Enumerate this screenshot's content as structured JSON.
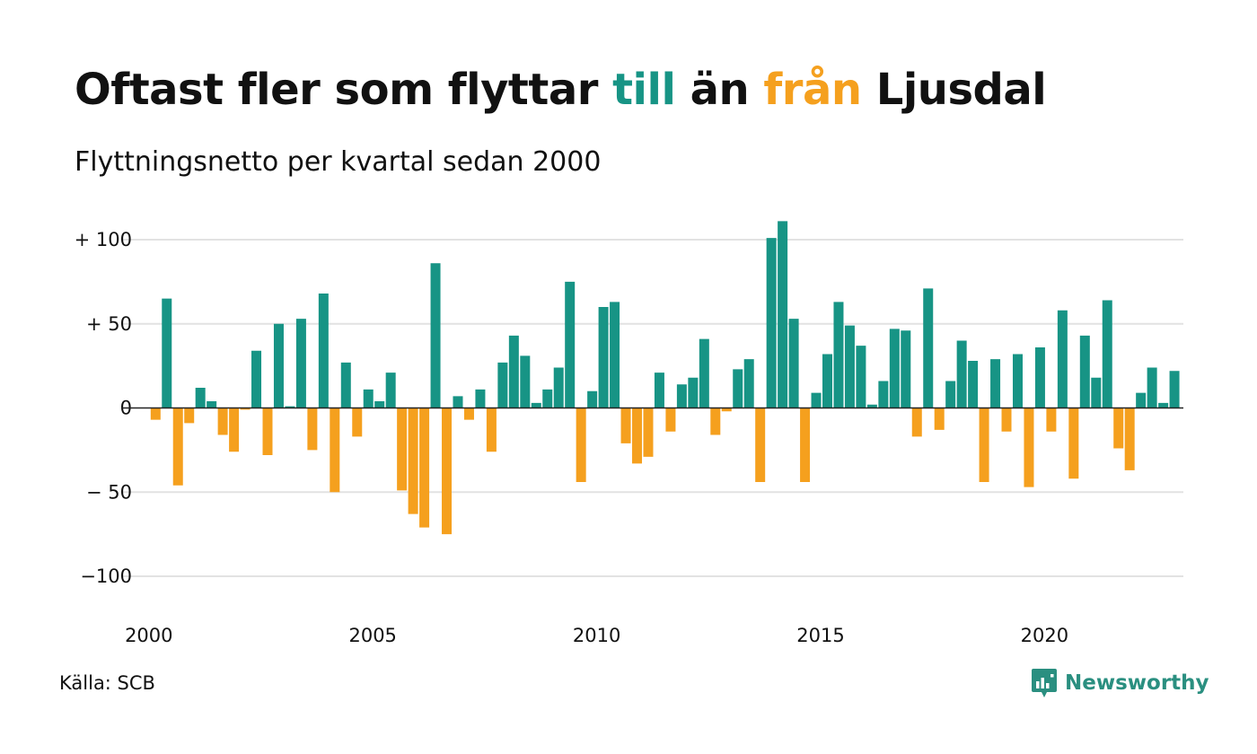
{
  "colors": {
    "positive": "#179485",
    "negative": "#f5a01e",
    "grid": "#e2e2e2",
    "brand": "#2a8f80"
  },
  "title": {
    "part1": "Oftast fler som flyttar ",
    "till": "till",
    "part2": " än ",
    "fran": "från",
    "part3": " Ljusdal"
  },
  "subtitle": "Flyttningsnetto per kvartal sedan 2000",
  "source": "Källa: SCB",
  "brand": {
    "name": "Newsworthy",
    "icon": "newsworthy-chart-bubble-icon"
  },
  "chart_data": {
    "type": "bar",
    "x_start": "2000 Q1",
    "frequency": "quarterly",
    "ylim": [
      -110,
      110
    ],
    "yticks": [
      {
        "value": 100,
        "label": "+ 100"
      },
      {
        "value": 50,
        "label": "+  50"
      },
      {
        "value": 0,
        "label": "0"
      },
      {
        "value": -50,
        "label": "− 50"
      },
      {
        "value": -100,
        "label": "−100"
      }
    ],
    "xticks": [
      {
        "year": 2000,
        "label": "2000"
      },
      {
        "year": 2005,
        "label": "2005"
      },
      {
        "year": 2010,
        "label": "2010"
      },
      {
        "year": 2015,
        "label": "2015"
      },
      {
        "year": 2020,
        "label": "2020"
      }
    ],
    "grid": true,
    "values": [
      -7,
      65,
      -46,
      -9,
      12,
      4,
      -16,
      -26,
      -1,
      34,
      -28,
      50,
      1,
      53,
      -25,
      68,
      -50,
      27,
      -17,
      11,
      4,
      21,
      -49,
      -63,
      -71,
      86,
      -75,
      7,
      -7,
      11,
      -26,
      27,
      43,
      31,
      3,
      11,
      24,
      75,
      -44,
      10,
      60,
      63,
      -21,
      -33,
      -29,
      21,
      -14,
      14,
      18,
      41,
      -16,
      -2,
      23,
      29,
      -44,
      101,
      111,
      53,
      -44,
      9,
      32,
      63,
      49,
      37,
      2,
      16,
      47,
      46,
      -17,
      71,
      -13,
      16,
      40,
      28,
      -44,
      29,
      -14,
      32,
      -47,
      36,
      -14,
      58,
      -42,
      43,
      18,
      64,
      -24,
      -37,
      9,
      24,
      3,
      22
    ]
  }
}
